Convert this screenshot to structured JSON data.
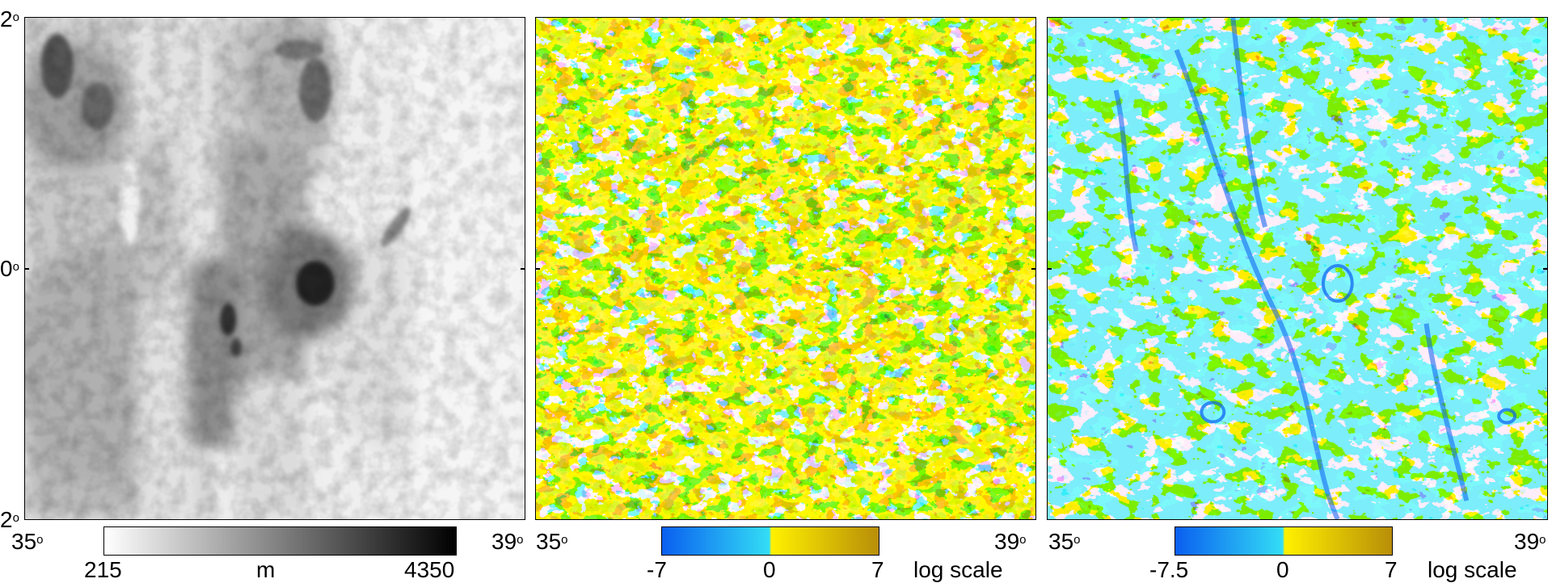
{
  "panels": [
    {
      "id": "elevation",
      "lat_top": "2",
      "lat_mid": "0",
      "lat_bottom": "2",
      "lon_left": "35",
      "lon_right": "39",
      "colorbar": {
        "min": "215",
        "unit": "m",
        "max": "4350",
        "colors": [
          "#ffffff",
          "#000000"
        ]
      }
    },
    {
      "id": "curvature-1",
      "lon_left": "35",
      "lon_right": "39",
      "colorbar": {
        "min": "-7",
        "mid": "0",
        "max": "7",
        "scale_label": "log scale",
        "colors": [
          "#0a5ff0",
          "#33ddf5",
          "#fff100",
          "#b88e08"
        ]
      }
    },
    {
      "id": "curvature-2",
      "lon_left": "35",
      "lon_right": "39",
      "colorbar": {
        "min": "-7.5",
        "mid": "0",
        "max": "7",
        "scale_label": "log scale",
        "colors": [
          "#0a5ff0",
          "#33ddf5",
          "#fff100",
          "#b88e08"
        ]
      }
    }
  ],
  "degree_symbol": "o"
}
